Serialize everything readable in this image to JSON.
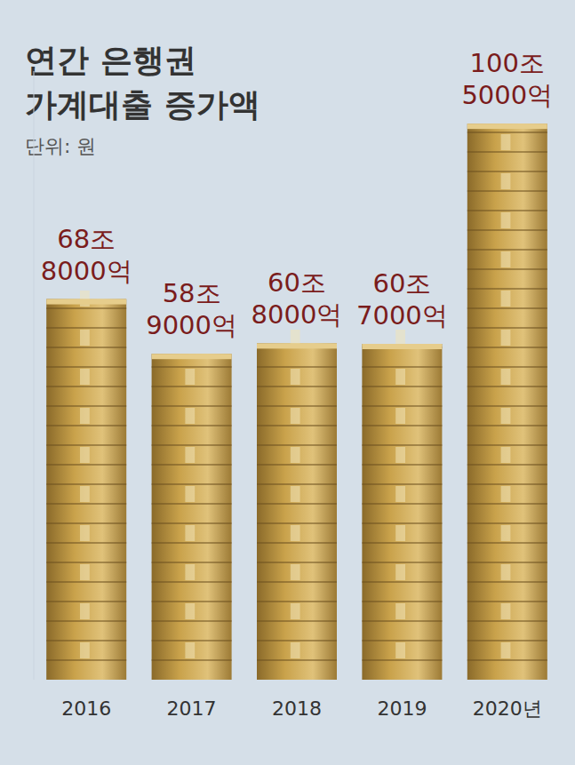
{
  "chart_data": {
    "type": "bar",
    "title": "연간 은행권 가계대출 증가액",
    "subtitle": "단위: 원",
    "categories": [
      "2016",
      "2017",
      "2018",
      "2019",
      "2020년"
    ],
    "values": [
      68.8,
      58.9,
      60.8,
      60.7,
      100.5
    ],
    "value_labels": [
      "68조 8000억",
      "58조 9000억",
      "60조 8000억",
      "60조 7000억",
      "100조 5000억"
    ],
    "color": "#c9a24b",
    "ylim": [
      0,
      110
    ],
    "data_labels": true,
    "tick_labels": "x",
    "grid": false
  }
}
